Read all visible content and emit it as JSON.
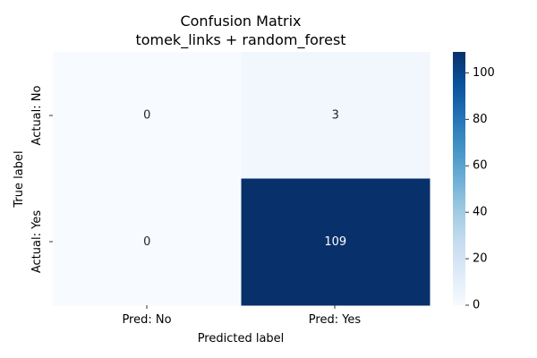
{
  "chart_data": {
    "type": "heatmap",
    "title": "Confusion Matrix",
    "subtitle": "tomek_links + random_forest",
    "xlabel": "Predicted label",
    "ylabel": "True label",
    "x_categories": [
      "Pred: No",
      "Pred: Yes"
    ],
    "y_categories": [
      "Actual: No",
      "Actual: Yes"
    ],
    "values": [
      [
        0,
        3
      ],
      [
        0,
        109
      ]
    ],
    "colormap": "Blues",
    "color_range": [
      0,
      109
    ],
    "colorbar": {
      "ticks": [
        0,
        20,
        40,
        60,
        80,
        100
      ],
      "tick_labels": [
        "0",
        "20",
        "40",
        "60",
        "80",
        "100"
      ]
    },
    "annotation_colors": {
      "light_cell": "#262626",
      "dark_cell": "#ffffff"
    },
    "grid": false,
    "legend": "colorbar-right"
  }
}
